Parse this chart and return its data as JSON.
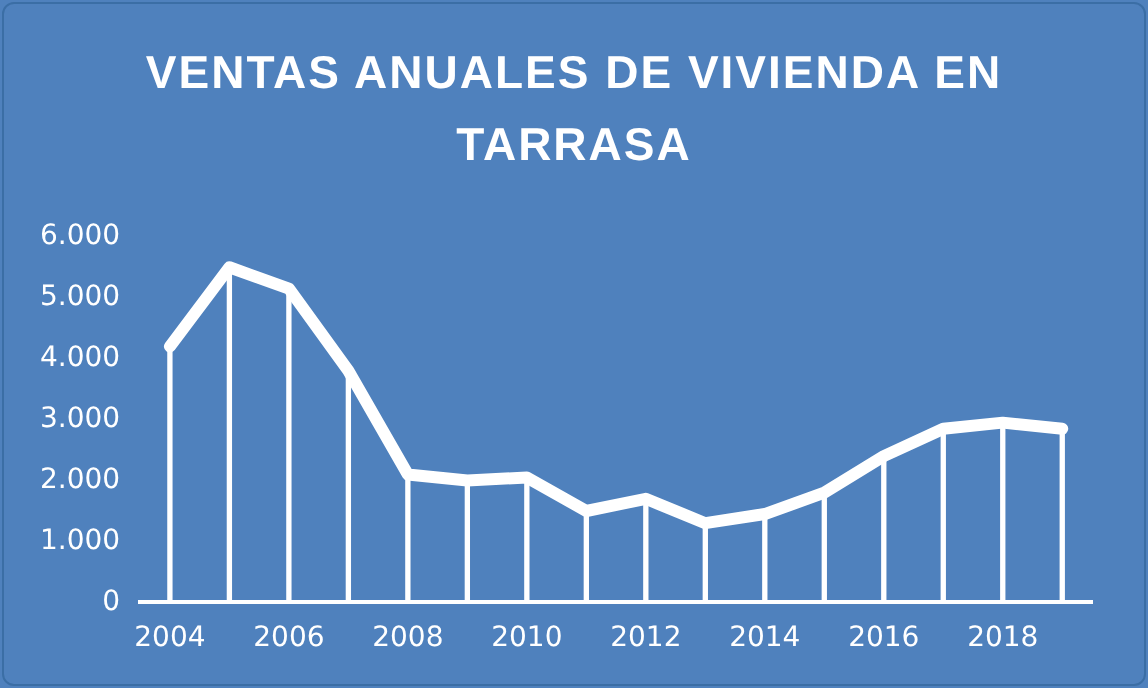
{
  "chart_data": {
    "type": "line",
    "title": "VENTAS ANUALES DE VIVIENDA EN TARRASA",
    "categories": [
      "2004",
      null,
      "2006",
      null,
      "2008",
      null,
      "2010",
      null,
      "2012",
      null,
      "2014",
      null,
      "2016",
      null,
      "2018",
      null
    ],
    "series": [
      {
        "type": "bar",
        "color": "#ffffff",
        "values": [
          4200,
          5500,
          5150,
          3800,
          2100,
          2000,
          2050,
          1500,
          1700,
          1300,
          1450,
          1800,
          2400,
          2850,
          2950,
          2850
        ]
      },
      {
        "color": "#ffffff",
        "values": [
          4200,
          5500,
          5150,
          3800,
          2100,
          2000,
          2050,
          1500,
          1700,
          1300,
          1450,
          1800,
          2400,
          2850,
          2950,
          2850
        ]
      }
    ],
    "ylim": [
      0,
      6000
    ],
    "yticks": [
      0,
      {
        "value": 1000,
        "label": "1.000"
      },
      {
        "value": 2000,
        "label": "2.000"
      },
      {
        "value": 3000,
        "label": "3.000"
      },
      {
        "value": 4000,
        "label": "4.000"
      },
      {
        "value": 5000,
        "label": "5.000"
      },
      {
        "value": 6000,
        "label": "6.000"
      }
    ],
    "legend": false,
    "marker": "none",
    "line_style": "solid"
  }
}
